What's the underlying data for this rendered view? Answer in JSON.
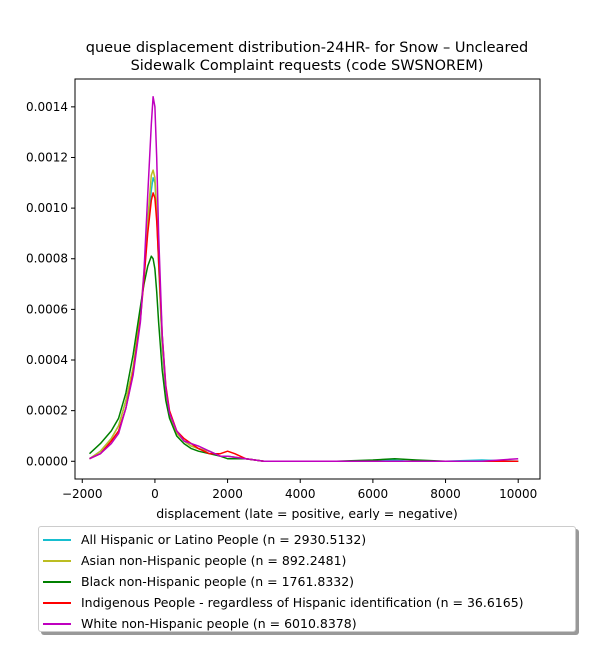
{
  "chart_data": {
    "type": "line",
    "title_lines": [
      "queue displacement distribution-24HR-  for Snow – Uncleared",
      "Sidewalk Complaint  requests (code SWSNOREM)"
    ],
    "xlabel": "displacement (late = positive, early = negative)",
    "ylabel": "",
    "xlim": [
      -2200,
      10600
    ],
    "ylim": [
      -7e-05,
      0.00151
    ],
    "x_ticks": [
      -2000,
      0,
      2000,
      4000,
      6000,
      8000,
      10000
    ],
    "x_tick_labels": [
      "−2000",
      "0",
      "2000",
      "4000",
      "6000",
      "8000",
      "10000"
    ],
    "y_ticks": [
      0,
      0.0002,
      0.0004,
      0.0006,
      0.0008,
      0.001,
      0.0012,
      0.0014
    ],
    "y_tick_labels": [
      "0.0000",
      "0.0002",
      "0.0004",
      "0.0006",
      "0.0008",
      "0.0010",
      "0.0012",
      "0.0014"
    ],
    "grid": false,
    "legend_position": "below",
    "series": [
      {
        "name": "All Hispanic or Latino People (n = 2930.5132)",
        "color": "#17becf",
        "points": [
          [
            -1800,
            1e-05
          ],
          [
            -1500,
            4e-05
          ],
          [
            -1200,
            9e-05
          ],
          [
            -1000,
            0.00014
          ],
          [
            -800,
            0.00024
          ],
          [
            -600,
            0.00037
          ],
          [
            -400,
            0.00058
          ],
          [
            -300,
            0.00073
          ],
          [
            -200,
            0.00092
          ],
          [
            -100,
            0.00107
          ],
          [
            -50,
            0.00112
          ],
          [
            0,
            0.0011
          ],
          [
            50,
            0.00098
          ],
          [
            100,
            0.00078
          ],
          [
            200,
            0.00045
          ],
          [
            300,
            0.00027
          ],
          [
            400,
            0.00018
          ],
          [
            600,
            0.00011
          ],
          [
            800,
            8e-05
          ],
          [
            1000,
            6e-05
          ],
          [
            1200,
            5e-05
          ],
          [
            1500,
            4e-05
          ],
          [
            1800,
            2e-05
          ],
          [
            2000,
            2e-05
          ],
          [
            2500,
            1e-05
          ],
          [
            3000,
            0.0
          ],
          [
            4000,
            0.0
          ],
          [
            5000,
            0.0
          ],
          [
            6000,
            0.0
          ],
          [
            6500,
            5e-06
          ],
          [
            7000,
            0.0
          ],
          [
            8000,
            0.0
          ],
          [
            9000,
            5e-06
          ],
          [
            10000,
            0.0
          ]
        ]
      },
      {
        "name": "Asian non-Hispanic people (n = 892.2481)",
        "color": "#bcbd22",
        "points": [
          [
            -1800,
            1e-05
          ],
          [
            -1500,
            4e-05
          ],
          [
            -1200,
            9e-05
          ],
          [
            -1000,
            0.00014
          ],
          [
            -800,
            0.00024
          ],
          [
            -600,
            0.00037
          ],
          [
            -400,
            0.00058
          ],
          [
            -300,
            0.00075
          ],
          [
            -200,
            0.00095
          ],
          [
            -100,
            0.00113
          ],
          [
            -50,
            0.00115
          ],
          [
            0,
            0.00112
          ],
          [
            50,
            0.00099
          ],
          [
            100,
            0.00079
          ],
          [
            200,
            0.00046
          ],
          [
            300,
            0.00027
          ],
          [
            400,
            0.00018
          ],
          [
            600,
            0.00011
          ],
          [
            800,
            8e-05
          ],
          [
            1000,
            6e-05
          ],
          [
            1200,
            5e-05
          ],
          [
            1500,
            4e-05
          ],
          [
            1800,
            2e-05
          ],
          [
            2000,
            2e-05
          ],
          [
            2500,
            1e-05
          ],
          [
            3000,
            0.0
          ],
          [
            4000,
            0.0
          ],
          [
            5000,
            0.0
          ],
          [
            6000,
            0.0
          ],
          [
            7000,
            0.0
          ],
          [
            8000,
            0.0
          ],
          [
            9000,
            0.0
          ],
          [
            10000,
            0.0
          ]
        ]
      },
      {
        "name": "Black non-Hispanic people (n = 1761.8332)",
        "color": "#008000",
        "points": [
          [
            -1800,
            3e-05
          ],
          [
            -1500,
            7e-05
          ],
          [
            -1200,
            0.00012
          ],
          [
            -1000,
            0.00017
          ],
          [
            -800,
            0.00027
          ],
          [
            -600,
            0.00042
          ],
          [
            -400,
            0.00061
          ],
          [
            -300,
            0.0007
          ],
          [
            -200,
            0.00077
          ],
          [
            -100,
            0.00081
          ],
          [
            -50,
            0.0008
          ],
          [
            0,
            0.00076
          ],
          [
            50,
            0.00067
          ],
          [
            100,
            0.00055
          ],
          [
            200,
            0.00036
          ],
          [
            300,
            0.00024
          ],
          [
            400,
            0.00017
          ],
          [
            600,
            0.0001
          ],
          [
            800,
            7e-05
          ],
          [
            1000,
            5e-05
          ],
          [
            1200,
            4e-05
          ],
          [
            1500,
            3e-05
          ],
          [
            1800,
            2e-05
          ],
          [
            2000,
            1e-05
          ],
          [
            2500,
            1e-05
          ],
          [
            3000,
            0.0
          ],
          [
            4000,
            0.0
          ],
          [
            5000,
            0.0
          ],
          [
            6000,
            5e-06
          ],
          [
            6600,
            1e-05
          ],
          [
            7200,
            5e-06
          ],
          [
            8000,
            0.0
          ],
          [
            9000,
            0.0
          ],
          [
            10000,
            0.0
          ]
        ]
      },
      {
        "name": "Indigenous People - regardless of Hispanic identification (n = 36.6165)",
        "color": "#ff0000",
        "points": [
          [
            -1800,
            1e-05
          ],
          [
            -1500,
            3e-05
          ],
          [
            -1200,
            8e-05
          ],
          [
            -1000,
            0.00012
          ],
          [
            -800,
            0.00021
          ],
          [
            -600,
            0.00035
          ],
          [
            -400,
            0.00056
          ],
          [
            -300,
            0.00072
          ],
          [
            -200,
            0.0009
          ],
          [
            -100,
            0.00103
          ],
          [
            -50,
            0.00106
          ],
          [
            0,
            0.00104
          ],
          [
            50,
            0.00095
          ],
          [
            100,
            0.0008
          ],
          [
            200,
            0.0005
          ],
          [
            300,
            0.0003
          ],
          [
            400,
            0.0002
          ],
          [
            600,
            0.00012
          ],
          [
            800,
            9e-05
          ],
          [
            1000,
            7e-05
          ],
          [
            1200,
            5e-05
          ],
          [
            1500,
            3e-05
          ],
          [
            1800,
            3e-05
          ],
          [
            2000,
            4e-05
          ],
          [
            2200,
            3e-05
          ],
          [
            2500,
            1e-05
          ],
          [
            3000,
            0.0
          ],
          [
            4000,
            0.0
          ],
          [
            5000,
            0.0
          ],
          [
            6000,
            0.0
          ],
          [
            7000,
            0.0
          ],
          [
            8000,
            0.0
          ],
          [
            9000,
            0.0
          ],
          [
            10000,
            0.0
          ]
        ]
      },
      {
        "name": "White non-Hispanic people (n = 6010.8378)",
        "color": "#bf00bf",
        "points": [
          [
            -1800,
            1e-05
          ],
          [
            -1500,
            3e-05
          ],
          [
            -1200,
            7e-05
          ],
          [
            -1000,
            0.00011
          ],
          [
            -800,
            0.00021
          ],
          [
            -600,
            0.00034
          ],
          [
            -400,
            0.00055
          ],
          [
            -300,
            0.00075
          ],
          [
            -200,
            0.00105
          ],
          [
            -100,
            0.00133
          ],
          [
            -50,
            0.00144
          ],
          [
            0,
            0.0014
          ],
          [
            50,
            0.0012
          ],
          [
            100,
            0.0009
          ],
          [
            200,
            0.0005
          ],
          [
            300,
            0.00029
          ],
          [
            400,
            0.00019
          ],
          [
            600,
            0.00012
          ],
          [
            800,
            8e-05
          ],
          [
            1000,
            7e-05
          ],
          [
            1200,
            6e-05
          ],
          [
            1500,
            4e-05
          ],
          [
            1800,
            2e-05
          ],
          [
            2000,
            2e-05
          ],
          [
            2500,
            1e-05
          ],
          [
            3000,
            0.0
          ],
          [
            4000,
            0.0
          ],
          [
            5000,
            0.0
          ],
          [
            6000,
            0.0
          ],
          [
            7000,
            0.0
          ],
          [
            8000,
            0.0
          ],
          [
            9000,
            0.0
          ],
          [
            10000,
            1e-05
          ]
        ]
      }
    ]
  }
}
